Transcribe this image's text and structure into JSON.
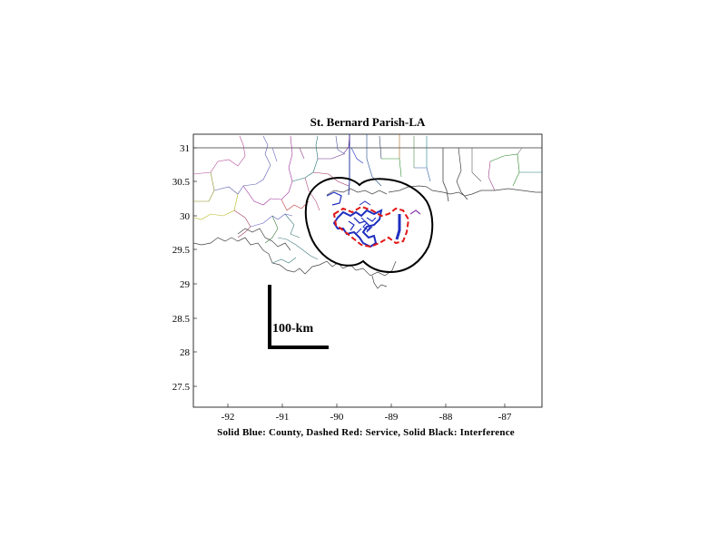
{
  "title": "St. Bernard Parish-LA",
  "caption": "Solid Blue: County, Dashed Red: Service, Solid Black: Interference",
  "scale_bar_label": "100-km",
  "axes": {
    "x_ticks": [
      "-92",
      "-91",
      "-90",
      "-89",
      "-88",
      "-87"
    ],
    "y_ticks": [
      "31",
      "30.5",
      "30",
      "29.5",
      "29",
      "28.5",
      "28",
      "27.5"
    ]
  },
  "legend_colors": {
    "county": "#1f2fbf",
    "service": "#e01818",
    "interference": "#000000"
  }
}
